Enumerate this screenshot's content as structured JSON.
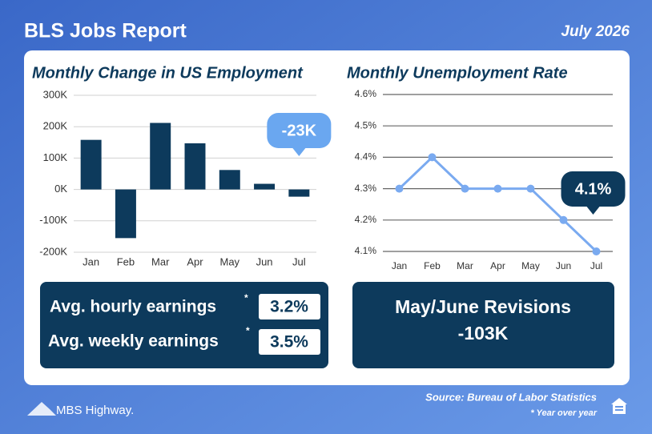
{
  "header": {
    "title": "BLS Jobs Report",
    "date": "July 2026"
  },
  "chart_data": [
    {
      "type": "bar",
      "title": "Monthly Change in US Employment",
      "categories": [
        "Jan",
        "Feb",
        "Mar",
        "Apr",
        "May",
        "Jun",
        "Jul"
      ],
      "values": [
        158,
        -155,
        212,
        147,
        62,
        18,
        -23
      ],
      "value_labels": [
        null,
        null,
        null,
        null,
        null,
        null,
        "-23K"
      ],
      "color": "#0d3a5c",
      "label_color": "#6aa7f0",
      "ylim": [
        -200,
        300
      ],
      "yticks": [
        {
          "value": -200,
          "label": "-200K"
        },
        {
          "value": -100,
          "label": "-100K"
        },
        {
          "value": 0,
          "label": "0K"
        },
        {
          "value": 100,
          "label": "100K"
        },
        {
          "value": 200,
          "label": "200K"
        },
        {
          "value": 300,
          "label": "300K"
        }
      ],
      "grid": true
    },
    {
      "type": "line",
      "title": "Monthly Unemployment Rate",
      "categories": [
        "Jan",
        "Feb",
        "Mar",
        "Apr",
        "May",
        "Jun",
        "Jul"
      ],
      "values": [
        4.3,
        4.4,
        4.3,
        4.3,
        4.3,
        4.2,
        4.1
      ],
      "value_labels": [
        null,
        null,
        null,
        null,
        null,
        null,
        "4.1%"
      ],
      "color": "#7aaaf0",
      "label_color": "#0d3a5c",
      "ylim": [
        4.1,
        4.6
      ],
      "yticks": [
        {
          "value": 4.1,
          "label": "4.1%"
        },
        {
          "value": 4.2,
          "label": "4.2%"
        },
        {
          "value": 4.3,
          "label": "4.3%"
        },
        {
          "value": 4.4,
          "label": "4.4%"
        },
        {
          "value": 4.5,
          "label": "4.5%"
        },
        {
          "value": 4.6,
          "label": "4.6%"
        }
      ],
      "grid": true
    }
  ],
  "earnings": {
    "rows": [
      {
        "label": "Avg. hourly earnings",
        "value": "3.2%"
      },
      {
        "label": "Avg. weekly earnings",
        "value": "3.5%"
      }
    ],
    "marker": "*"
  },
  "revisions": {
    "title": "May/June Revisions",
    "value": "-103K"
  },
  "footer": {
    "brand": "MBS Highway.",
    "source": "Source: Bureau of Labor Statistics",
    "note": "* Year over year"
  }
}
